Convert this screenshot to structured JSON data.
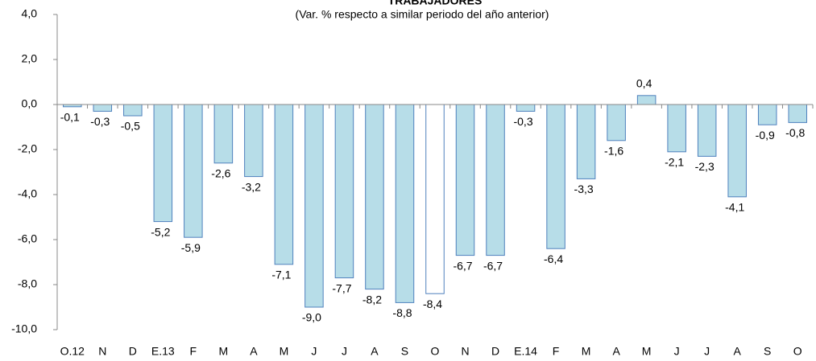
{
  "chart_data": {
    "type": "bar",
    "title": "TRABAJADORES",
    "subtitle": "(Var. % respecto a similar periodo del año anterior)",
    "categories": [
      "O.12",
      "N",
      "D",
      "E.13",
      "F",
      "M",
      "A",
      "M",
      "J",
      "J",
      "A",
      "S",
      "O",
      "N",
      "D",
      "E.14",
      "F",
      "M",
      "A",
      "M",
      "J",
      "J",
      "A",
      "S",
      "O"
    ],
    "values": [
      -0.1,
      -0.3,
      -0.5,
      -5.2,
      -5.9,
      -2.6,
      -3.2,
      -7.1,
      -9.0,
      -7.7,
      -8.2,
      -8.8,
      -8.4,
      -6.7,
      -6.7,
      -0.3,
      -6.4,
      -3.3,
      -1.6,
      0.4,
      -2.1,
      -2.3,
      -4.1,
      -0.9,
      -0.8
    ],
    "value_labels": [
      "-0,1",
      "-0,3",
      "-0,5",
      "-5,2",
      "-5,9",
      "-2,6",
      "-3,2",
      "-7,1",
      "-9,0",
      "-7,7",
      "-8,2",
      "-8,8",
      "-8,4",
      "-6,7",
      "-6,7",
      "-0,3",
      "-6,4",
      "-3,3",
      "-1,6",
      "0,4",
      "-2,1",
      "-2,3",
      "-4,1",
      "-0,9",
      "-0,8"
    ],
    "colors": [
      "#b7dde8",
      "#b7dde8",
      "#b7dde8",
      "#b7dde8",
      "#b7dde8",
      "#b7dde8",
      "#b7dde8",
      "#b7dde8",
      "#b7dde8",
      "#b7dde8",
      "#b7dde8",
      "#b7dde8",
      "#ffffff",
      "#b7dde8",
      "#b7dde8",
      "#b7dde8",
      "#b7dde8",
      "#b7dde8",
      "#b7dde8",
      "#b7dde8",
      "#b7dde8",
      "#b7dde8",
      "#b7dde8",
      "#b7dde8",
      "#b7dde8"
    ],
    "border_color": "#4f81bd",
    "ylim": [
      -10,
      4
    ],
    "yticks": [
      {
        "value": -10,
        "label": "-10,0"
      },
      {
        "value": -8,
        "label": "-8,0"
      },
      {
        "value": -6,
        "label": "-6,0"
      },
      {
        "value": -4,
        "label": "-4,0"
      },
      {
        "value": -2,
        "label": "-2,0"
      },
      {
        "value": 0,
        "label": "0,0"
      },
      {
        "value": 2,
        "label": "2,0"
      },
      {
        "value": 4,
        "label": "4,0"
      }
    ],
    "grid": false
  }
}
